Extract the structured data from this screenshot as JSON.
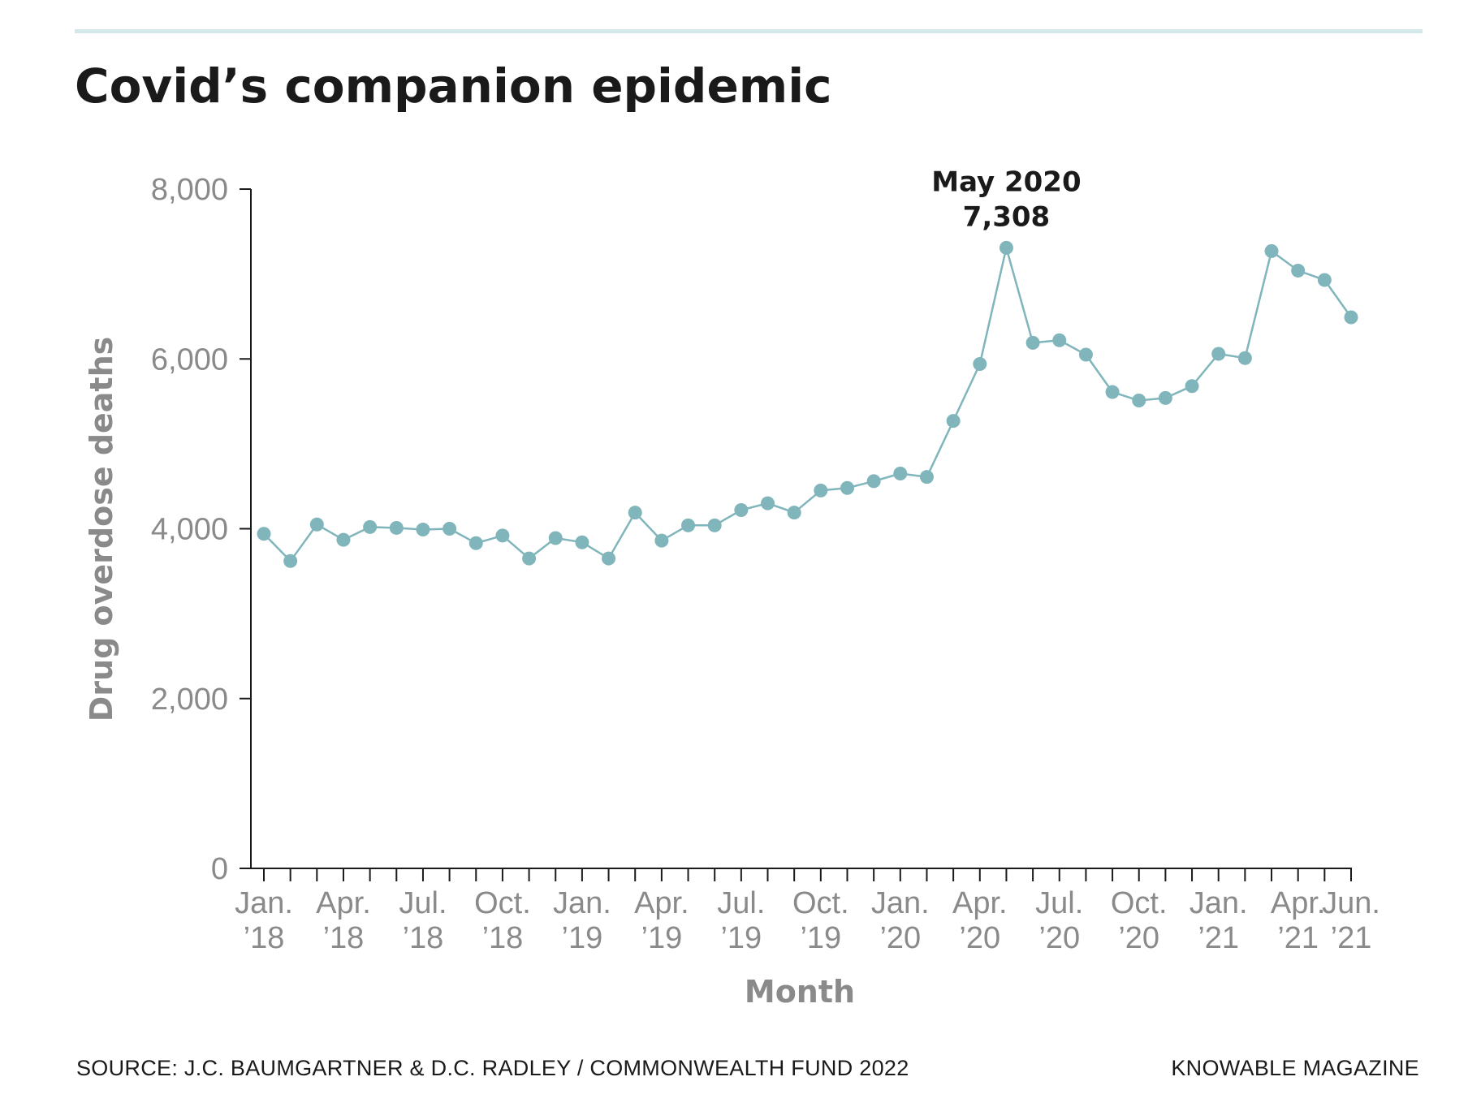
{
  "header": {
    "title": "Covid’s companion epidemic"
  },
  "footer": {
    "source": "SOURCE: J.C. BAUMGARTNER & D.C. RADLEY / COMMONWEALTH FUND 2022",
    "publisher": "KNOWABLE MAGAZINE"
  },
  "colors": {
    "accent_rule": "#d4e8ea",
    "series": "#7fb5bb",
    "axis": "#1a1a1a",
    "tick_text": "#8a8a8a",
    "title_text": "#1a1a1a"
  },
  "chart_data": {
    "type": "line",
    "title": "Covid’s companion epidemic",
    "xlabel": "Month",
    "ylabel": "Drug overdose deaths",
    "ylim": [
      0,
      8000
    ],
    "y_ticks": [
      0,
      2000,
      4000,
      6000,
      8000
    ],
    "y_tick_labels": [
      "0",
      "2,000",
      "4,000",
      "6,000",
      "8,000"
    ],
    "grid": false,
    "legend": "none",
    "x": [
      "Jan. 2018",
      "Feb. 2018",
      "Mar. 2018",
      "Apr. 2018",
      "May 2018",
      "Jun. 2018",
      "Jul. 2018",
      "Aug. 2018",
      "Sep. 2018",
      "Oct. 2018",
      "Nov. 2018",
      "Dec. 2018",
      "Jan. 2019",
      "Feb. 2019",
      "Mar. 2019",
      "Apr. 2019",
      "May 2019",
      "Jun. 2019",
      "Jul. 2019",
      "Aug. 2019",
      "Sep. 2019",
      "Oct. 2019",
      "Nov. 2019",
      "Dec. 2019",
      "Jan. 2020",
      "Feb. 2020",
      "Mar. 2020",
      "Apr. 2020",
      "May 2020",
      "Jun. 2020",
      "Jul. 2020",
      "Aug. 2020",
      "Sep. 2020",
      "Oct. 2020",
      "Nov. 2020",
      "Dec. 2020",
      "Jan. 2021",
      "Feb. 2021",
      "Mar. 2021",
      "Apr. 2021",
      "May 2021",
      "Jun. 2021"
    ],
    "x_tick_labels": [
      {
        "index": 0,
        "line1": "Jan.",
        "line2": "’18"
      },
      {
        "index": 3,
        "line1": "Apr.",
        "line2": "’18"
      },
      {
        "index": 6,
        "line1": "Jul.",
        "line2": "’18"
      },
      {
        "index": 9,
        "line1": "Oct.",
        "line2": "’18"
      },
      {
        "index": 12,
        "line1": "Jan.",
        "line2": "’19"
      },
      {
        "index": 15,
        "line1": "Apr.",
        "line2": "’19"
      },
      {
        "index": 18,
        "line1": "Jul.",
        "line2": "’19"
      },
      {
        "index": 21,
        "line1": "Oct.",
        "line2": "’19"
      },
      {
        "index": 24,
        "line1": "Jan.",
        "line2": "’20"
      },
      {
        "index": 27,
        "line1": "Apr.",
        "line2": "’20"
      },
      {
        "index": 30,
        "line1": "Jul.",
        "line2": "’20"
      },
      {
        "index": 33,
        "line1": "Oct.",
        "line2": "’20"
      },
      {
        "index": 36,
        "line1": "Jan.",
        "line2": "’21"
      },
      {
        "index": 39,
        "line1": "Apr.",
        "line2": "’21"
      },
      {
        "index": 41,
        "line1": "Jun.",
        "line2": "’21"
      }
    ],
    "series": [
      {
        "values": [
          3940,
          3620,
          4050,
          3870,
          4020,
          4010,
          3990,
          4000,
          3830,
          3920,
          3650,
          3890,
          3840,
          3650,
          4190,
          3860,
          4040,
          4040,
          4220,
          4300,
          4190,
          4450,
          4480,
          4560,
          4650,
          4610,
          5270,
          5940,
          7308,
          6190,
          6220,
          6050,
          5610,
          5510,
          5540,
          5680,
          6060,
          6010,
          7270,
          7040,
          6930,
          6490
        ]
      }
    ],
    "annotations": [
      {
        "index": 28,
        "line1": "May 2020",
        "line2": "7,308"
      }
    ]
  }
}
